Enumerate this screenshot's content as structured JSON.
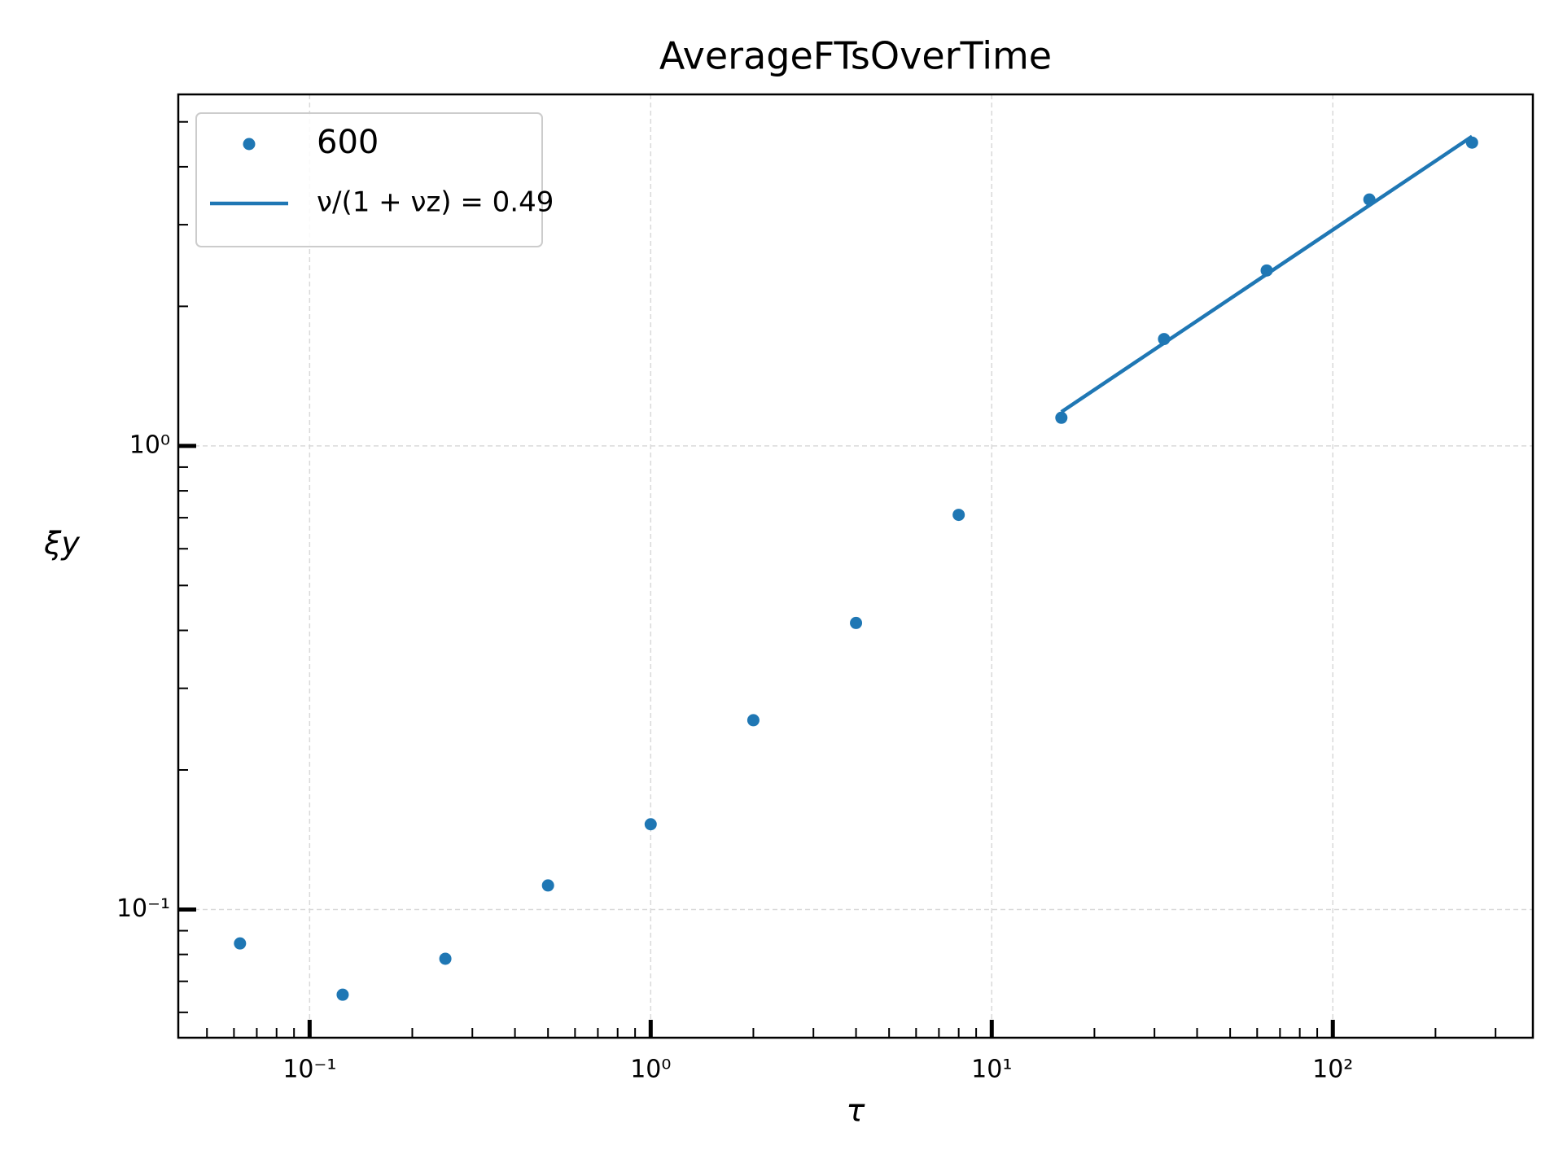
{
  "chart_data": {
    "type": "scatter",
    "title": "AverageFTsOverTime",
    "xlabel": "τ",
    "ylabel": "ξy",
    "xscale": "log",
    "yscale": "log",
    "xlim": [
      0.0412,
      386
    ],
    "ylim": [
      0.0529,
      5.73
    ],
    "xticks": [
      {
        "value": 0.1,
        "label": "10⁻¹"
      },
      {
        "value": 1,
        "label": "10⁰"
      },
      {
        "value": 10,
        "label": "10¹"
      },
      {
        "value": 100,
        "label": "10²"
      }
    ],
    "yticks": [
      {
        "value": 0.1,
        "label": "10⁻¹"
      },
      {
        "value": 1,
        "label": "10⁰"
      }
    ],
    "xminorticks": [
      0.05,
      0.06,
      0.07,
      0.08,
      0.09,
      0.2,
      0.3,
      0.4,
      0.5,
      0.6,
      0.7,
      0.8,
      0.9,
      2,
      3,
      4,
      5,
      6,
      7,
      8,
      9,
      20,
      30,
      40,
      50,
      60,
      70,
      80,
      90,
      200,
      300
    ],
    "yminorticks": [
      0.06,
      0.07,
      0.08,
      0.09,
      0.2,
      0.3,
      0.4,
      0.5,
      0.6,
      0.7,
      0.8,
      0.9,
      2,
      3,
      4,
      5
    ],
    "grid": true,
    "legend": "upper left",
    "series": [
      {
        "name": "600",
        "color": "#1f77b4",
        "mode": "markers",
        "x": [
          0.0625,
          0.125,
          0.25,
          0.5,
          1,
          2,
          4,
          8,
          16,
          32,
          64,
          128,
          256
        ],
        "values": [
          0.0845,
          0.0655,
          0.0783,
          0.1127,
          0.1527,
          0.256,
          0.415,
          0.71,
          1.15,
          1.7,
          2.39,
          3.4,
          4.51
        ]
      },
      {
        "name": "ν/(1 + νz) = 0.49",
        "color": "#1f77b4",
        "mode": "line",
        "x": [
          16,
          256
        ],
        "values": [
          1.184,
          4.65
        ]
      }
    ]
  }
}
